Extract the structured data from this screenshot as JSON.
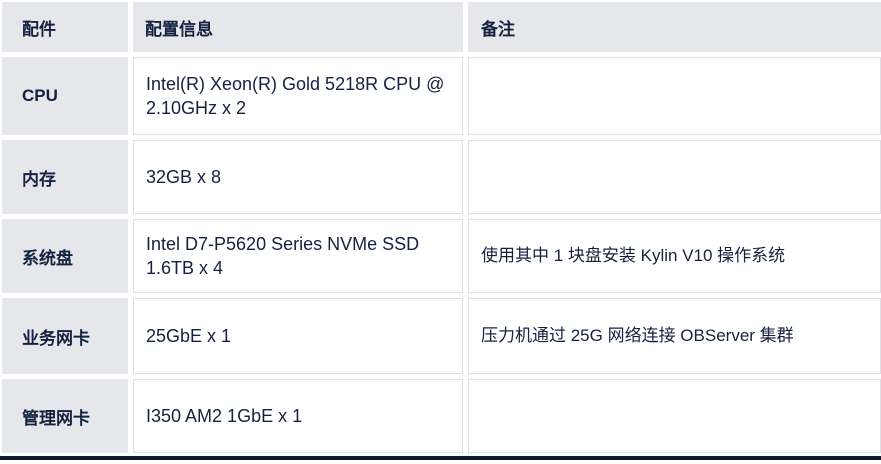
{
  "table": {
    "headers": [
      {
        "label": "配件"
      },
      {
        "label": "配置信息"
      },
      {
        "label": "备注"
      }
    ],
    "rows": [
      {
        "component": "CPU",
        "config": "Intel(R) Xeon(R) Gold 5218R CPU @ 2.10GHz x 2",
        "remark": ""
      },
      {
        "component": "内存",
        "config": "32GB x 8",
        "remark": ""
      },
      {
        "component": "系统盘",
        "config": "Intel D7-P5620 Series NVMe SSD 1.6TB x 4",
        "remark": "使用其中 1 块盘安装 Kylin V10 操作系统"
      },
      {
        "component": "业务网卡",
        "config": "25GbE x 1",
        "remark": "压力机通过 25G 网络连接 OBServer 集群"
      },
      {
        "component": "管理网卡",
        "config": "I350 AM2 1GbE x 1",
        "remark": ""
      }
    ],
    "colors": {
      "header_bg": "#e5e7ea",
      "label_bg": "#e5e7ea",
      "cell_bg": "#ffffff",
      "cell_border": "#dcdfe3",
      "text": "#14213f",
      "bottom_rule": "#10192e"
    }
  }
}
